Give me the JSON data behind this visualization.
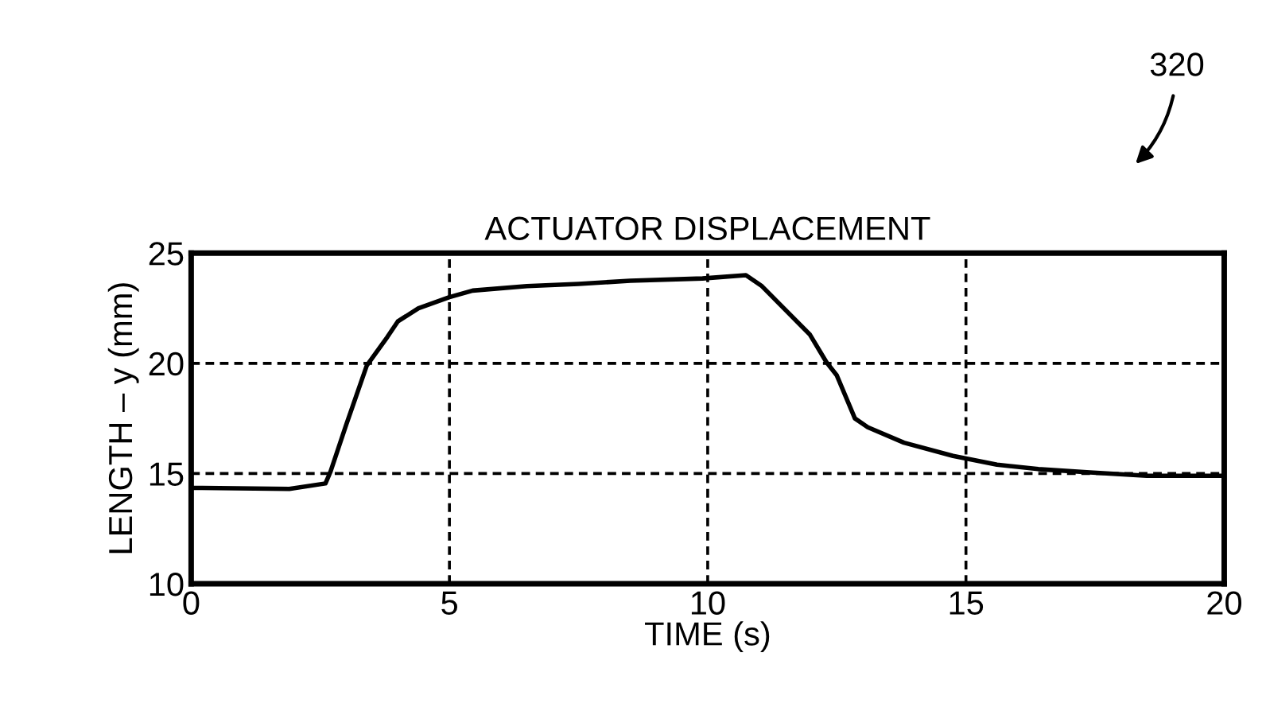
{
  "chart_data": {
    "type": "line",
    "title": "ACTUATOR DISPLACEMENT",
    "xlabel": "TIME (s)",
    "ylabel": "LENGTH – y (mm)",
    "annotations": [
      "320"
    ],
    "x": [
      0,
      1.9,
      2.6,
      2.7,
      3.0,
      3.4,
      3.8,
      4.0,
      4.4,
      5.0,
      5.45,
      6.5,
      7.5,
      8.5,
      9.9,
      10.74,
      11.05,
      11.98,
      12.3,
      12.5,
      12.85,
      13.1,
      13.8,
      14.75,
      15.6,
      16.4,
      17.4,
      18.5,
      20
    ],
    "series": [
      {
        "color": "#000000",
        "values": [
          14.35,
          14.3,
          14.55,
          15.1,
          17.2,
          19.9,
          21.2,
          21.9,
          22.5,
          23.0,
          23.3,
          23.5,
          23.6,
          23.75,
          23.85,
          24.0,
          23.5,
          21.3,
          20.05,
          19.45,
          17.5,
          17.1,
          16.4,
          15.8,
          15.4,
          15.2,
          15.05,
          14.9,
          14.9
        ]
      }
    ],
    "xlim": [
      0,
      20
    ],
    "xticks": [
      0,
      5,
      10,
      15,
      20
    ],
    "ylim": [
      10,
      25
    ],
    "yticks": [
      10,
      15,
      20,
      25
    ],
    "grid": true,
    "line_style": "solid",
    "marker": "none"
  }
}
